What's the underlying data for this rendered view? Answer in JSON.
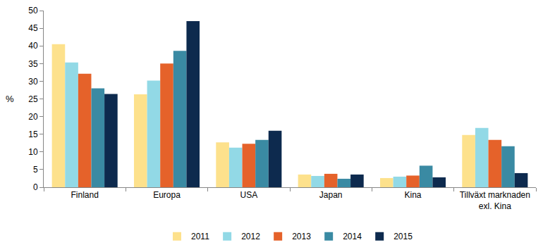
{
  "chart_data": {
    "type": "bar",
    "y_label": "%",
    "categories": [
      "Finland",
      "Europa",
      "USA",
      "Japan",
      "Kina",
      "Tillväxt marknaden exl. Kina"
    ],
    "series": [
      {
        "name": "2011",
        "color": "#fde18c",
        "values": [
          40.5,
          26.3,
          12.7,
          3.6,
          2.6,
          14.8
        ]
      },
      {
        "name": "2012",
        "color": "#92d9e6",
        "values": [
          35.3,
          30.2,
          11.2,
          3.2,
          3.0,
          16.8
        ]
      },
      {
        "name": "2013",
        "color": "#e5622a",
        "values": [
          32.1,
          35.0,
          12.3,
          3.8,
          3.3,
          13.4
        ]
      },
      {
        "name": "2014",
        "color": "#3a8aa3",
        "values": [
          28.0,
          38.6,
          13.4,
          2.4,
          6.1,
          11.6
        ]
      },
      {
        "name": "2015",
        "color": "#0d2a4e",
        "values": [
          26.4,
          47.0,
          16.0,
          3.6,
          2.8,
          4.0
        ]
      }
    ],
    "ylim": [
      0,
      50
    ],
    "yticks": [
      0,
      5,
      10,
      15,
      20,
      25,
      30,
      35,
      40,
      45,
      50
    ],
    "grid": false,
    "legend": "bottom"
  }
}
